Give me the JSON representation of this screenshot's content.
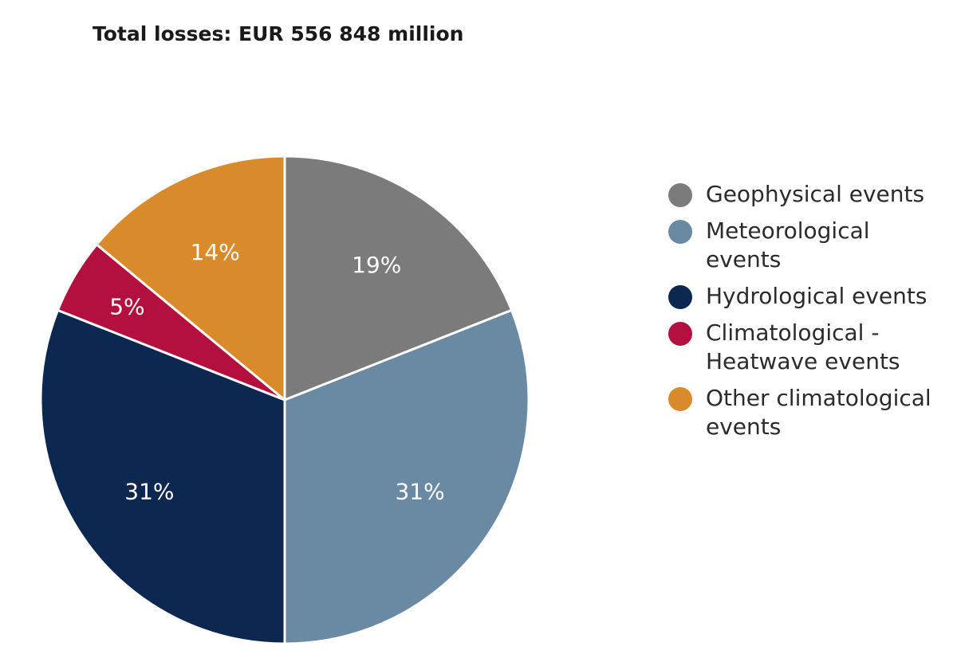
{
  "chart_data": {
    "type": "pie",
    "title": "Total losses: EUR 556 848 million",
    "slices": [
      {
        "name": "Geophysical events",
        "value": 19,
        "label": "19%",
        "color": "#7b7b7b",
        "label_color": "#ffffff"
      },
      {
        "name": "Meteorological events",
        "value": 31,
        "label": "31%",
        "color": "#6a8aa3",
        "label_color": "#ffffff"
      },
      {
        "name": "Hydrological events",
        "value": 31,
        "label": "31%",
        "color": "#0c2850",
        "label_color": "#ffffff"
      },
      {
        "name": "Climatological - Heatwave events",
        "value": 5,
        "label": "5%",
        "color": "#b4103f",
        "label_color": "#ffffff"
      },
      {
        "name": "Other climatological events",
        "value": 14,
        "label": "14%",
        "color": "#d98b2b",
        "label_color": "#ffffff"
      }
    ],
    "start": "12 o'clock",
    "direction": "clockwise",
    "legend_position": "right"
  }
}
